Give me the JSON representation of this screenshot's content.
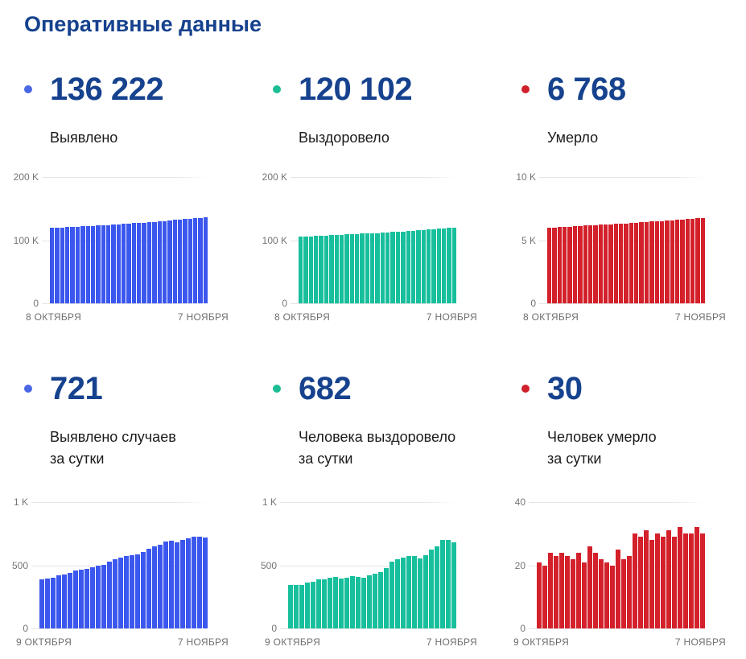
{
  "title": "Оперативные данные",
  "colors": {
    "navy": "#16428e",
    "text_dark": "#1b1b1b",
    "axis_gray": "#757575",
    "xaxis_gray": "#6e6e6e",
    "grid_line": "#e4e4e4",
    "blue": "#3b57ee",
    "green": "#17bf9c",
    "red": "#d3202a"
  },
  "panels": [
    {
      "value": "136 222",
      "label": [
        "Выявлено"
      ],
      "dot_color": "#4a67e4"
    },
    {
      "value": "120 102",
      "label": [
        "Выздоровело"
      ],
      "dot_color": "#1dbd94"
    },
    {
      "value": "6 768",
      "label": [
        "Умерло"
      ],
      "dot_color": "#cf202b"
    },
    {
      "value": "721",
      "label": [
        "Выявлено случаев",
        "за сутки"
      ],
      "dot_color": "#4a67e4"
    },
    {
      "value": "682",
      "label": [
        "Человека выздоровело",
        "за сутки"
      ],
      "dot_color": "#1dbd94"
    },
    {
      "value": "30",
      "label": [
        "Человек умерло",
        "за сутки"
      ],
      "dot_color": "#cf202b"
    }
  ],
  "chart_data": [
    {
      "type": "bar",
      "title": "Выявлено",
      "color": "#3b57ee",
      "ylim": [
        0,
        200000
      ],
      "y_ticks": [
        "200 K",
        "100 K",
        "0"
      ],
      "x_first": "8 ОКТЯБРЯ",
      "x_last": "7 НОЯБРЯ",
      "grid": true,
      "values": [
        119306,
        119696,
        120090,
        120492,
        120910,
        121337,
        121778,
        122234,
        122696,
        123165,
        123646,
        124143,
        124647,
        125178,
        125724,
        126282,
        126853,
        127435,
        128023,
        128626,
        129257,
        129906,
        130568,
        131256,
        131950,
        132633,
        133334,
        134048,
        134777,
        135501,
        136222
      ]
    },
    {
      "type": "bar",
      "title": "Выздоровело",
      "color": "#17bf9c",
      "ylim": [
        0,
        200000
      ],
      "y_ticks": [
        "200 K",
        "100 K",
        "0"
      ],
      "x_first": "8 ОКТЯБРЯ",
      "x_last": "7 НОЯБРЯ",
      "grid": true,
      "values": [
        105678,
        106023,
        106367,
        106708,
        107072,
        107443,
        107829,
        108220,
        108624,
        109033,
        109429,
        109830,
        110241,
        110646,
        111045,
        111464,
        111896,
        112343,
        112821,
        113349,
        113898,
        114461,
        115032,
        115606,
        116162,
        116744,
        117368,
        118019,
        118717,
        119420,
        120102
      ]
    },
    {
      "type": "bar",
      "title": "Умерло",
      "color": "#d3202a",
      "ylim": [
        0,
        10000
      ],
      "y_ticks": [
        "10 K",
        "5 K",
        "0"
      ],
      "x_first": "8 ОКТЯБРЯ",
      "x_last": "7 НОЯБРЯ",
      "grid": true,
      "values": [
        5992,
        6013,
        6033,
        6057,
        6080,
        6104,
        6127,
        6149,
        6173,
        6194,
        6220,
        6244,
        6266,
        6287,
        6307,
        6332,
        6354,
        6377,
        6407,
        6436,
        6467,
        6495,
        6525,
        6554,
        6585,
        6614,
        6646,
        6676,
        6706,
        6738,
        6768
      ]
    },
    {
      "type": "bar",
      "title": "Выявлено случаев за сутки",
      "color": "#3b57ee",
      "ylim": [
        0,
        1000
      ],
      "y_ticks": [
        "1 K",
        "500",
        "0"
      ],
      "x_first": "9 ОКТЯБРЯ",
      "x_last": "7 НОЯБРЯ",
      "grid": true,
      "values": [
        390,
        394,
        402,
        418,
        427,
        441,
        456,
        462,
        469,
        481,
        497,
        504,
        531,
        546,
        558,
        571,
        582,
        588,
        603,
        631,
        649,
        662,
        688,
        694,
        683,
        701,
        714,
        729,
        724,
        721
      ]
    },
    {
      "type": "bar",
      "title": "Человека выздоровело за сутки",
      "color": "#17bf9c",
      "ylim": [
        0,
        1000
      ],
      "y_ticks": [
        "1 K",
        "500",
        "0"
      ],
      "x_first": "9 ОКТЯБРЯ",
      "x_last": "7 НОЯБРЯ",
      "grid": true,
      "values": [
        345,
        344,
        341,
        364,
        371,
        386,
        391,
        404,
        409,
        396,
        401,
        411,
        405,
        399,
        419,
        432,
        447,
        478,
        528,
        549,
        563,
        571,
        574,
        556,
        582,
        624,
        651,
        698,
        703,
        682
      ]
    },
    {
      "type": "bar",
      "title": "Человек умерло за сутки",
      "color": "#d3202a",
      "ylim": [
        0,
        40
      ],
      "y_ticks": [
        "40",
        "20",
        "0"
      ],
      "x_first": "9 ОКТЯБРЯ",
      "x_last": "7 НОЯБРЯ",
      "grid": true,
      "values": [
        21,
        20,
        24,
        23,
        24,
        23,
        22,
        24,
        21,
        26,
        24,
        22,
        21,
        20,
        25,
        22,
        23,
        30,
        29,
        31,
        28,
        30,
        29,
        31,
        29,
        32,
        30,
        30,
        32,
        30
      ]
    }
  ]
}
